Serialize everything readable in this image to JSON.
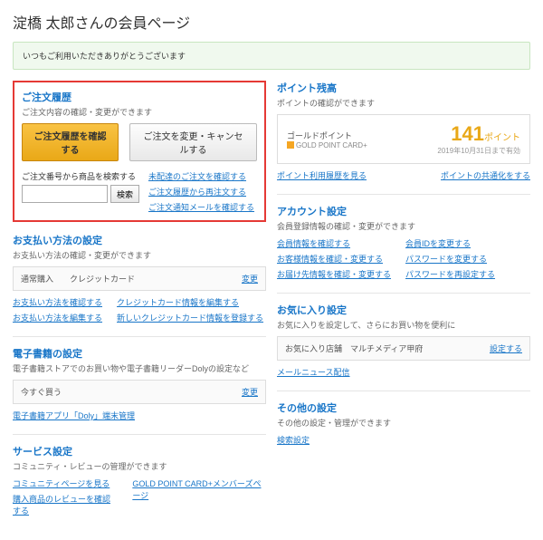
{
  "page_title": "淀橋 太郎さんの会員ページ",
  "notice": "いつもご利用いただきありがとうございます",
  "order": {
    "title": "ご注文履歴",
    "sub": "ご注文内容の確認・変更ができます",
    "btn_history": "ご注文履歴を確認する",
    "btn_modify": "ご注文を変更・キャンセルする",
    "search_label": "ご注文番号から商品を検索する",
    "search_btn": "検索",
    "links": [
      "未配達のご注文を確認する",
      "ご注文履歴から再注文する",
      "ご注文通知メールを確認する"
    ]
  },
  "points": {
    "title": "ポイント残高",
    "sub": "ポイントの確認ができます",
    "gold_label": "ゴールドポイント",
    "card_label": "GOLD POINT CARD+",
    "value": "141",
    "unit": "ポイント",
    "date": "2019年10月31日まで有効",
    "link_history": "ポイント利用履歴を見る",
    "link_common": "ポイントの共通化をする"
  },
  "payment": {
    "title": "お支払い方法の設定",
    "sub": "お支払い方法の確認・変更ができます",
    "box_l": "通常購入",
    "box_r": "クレジットカード",
    "edit": "変更",
    "l1": "お支払い方法を確認する",
    "l2": "お支払い方法を編集する",
    "l3": "クレジットカード情報を編集する",
    "l4": "新しいクレジットカード情報を登録する"
  },
  "account": {
    "title": "アカウント設定",
    "sub": "会員登録情報の確認・変更ができます",
    "l1": "会員情報を確認する",
    "l2": "お客様情報を確認・変更する",
    "l3": "お届け先情報を確認・変更する",
    "l4": "会員IDを変更する",
    "l5": "パスワードを変更する",
    "l6": "パスワードを再設定する"
  },
  "ebook": {
    "title": "電子書籍の設定",
    "sub": "電子書籍ストアでのお買い物や電子書籍リーダーDolyの設定など",
    "box": "今すぐ買う",
    "edit": "変更",
    "link": "電子書籍アプリ「Doly」端末管理"
  },
  "fav": {
    "title": "お気に入り設定",
    "sub": "お気に入りを設定して、さらにお買い物を便利に",
    "box_l": "お気に入り店舗",
    "box_r": "マルチメディア甲府",
    "edit": "設定する",
    "link": "メールニュース配信"
  },
  "service": {
    "title": "サービス設定",
    "sub": "コミュニティ・レビューの管理ができます",
    "l1": "コミュニティページを見る",
    "l2": "GOLD POINT CARD+メンバーズページ",
    "l3": "購入商品のレビューを確認する"
  },
  "other": {
    "title": "その他の設定",
    "sub": "その他の設定・管理ができます",
    "l1": "検索設定"
  }
}
